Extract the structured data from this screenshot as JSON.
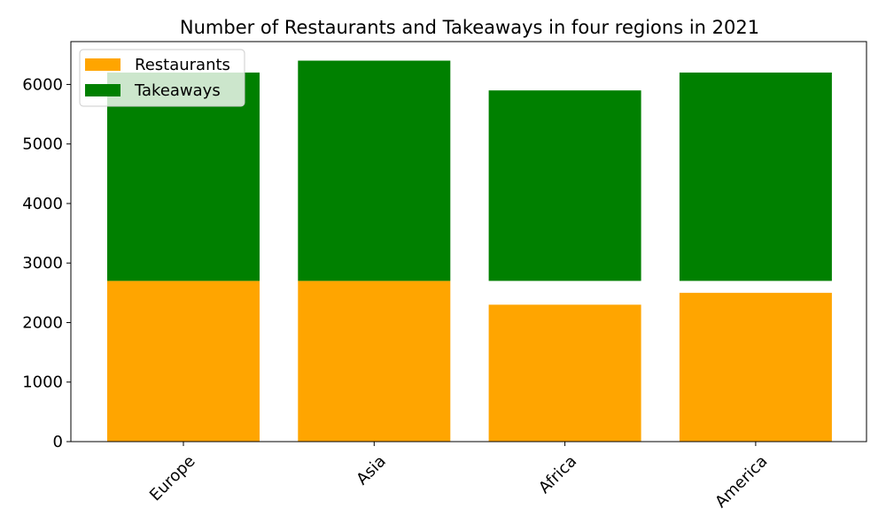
{
  "chart_data": {
    "type": "bar",
    "stacking": "overlay",
    "title": "Number of Restaurants and Takeaways in four regions in 2021",
    "xlabel": "",
    "ylabel": "",
    "categories": [
      "Europe",
      "Asia",
      "Africa",
      "America"
    ],
    "series": [
      {
        "name": "Restaurants",
        "color": "#ffa500",
        "base": [
          0,
          0,
          0,
          0
        ],
        "values": [
          2700,
          2700,
          2300,
          2500
        ]
      },
      {
        "name": "Takeaways",
        "color": "#008000",
        "base": [
          2700,
          2700,
          2700,
          2700
        ],
        "values": [
          3500,
          3700,
          3200,
          3500
        ]
      }
    ],
    "ylim": [
      0,
      6720
    ],
    "yticks": [
      0,
      1000,
      2000,
      3000,
      4000,
      5000,
      6000
    ],
    "x_tick_rotation": 45,
    "grid": false,
    "legend_position": "top-left"
  }
}
